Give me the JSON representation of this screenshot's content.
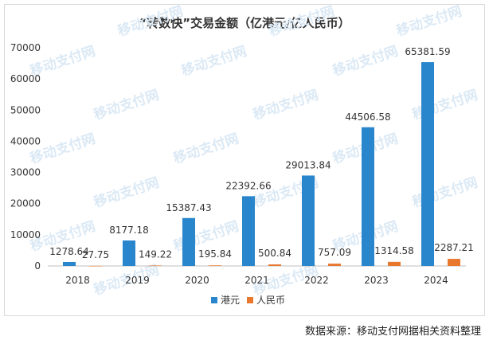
{
  "chart_data": {
    "type": "bar",
    "title": "“转数快”交易金额（亿港元/亿人民币）",
    "categories": [
      "2018",
      "2019",
      "2020",
      "2021",
      "2022",
      "2023",
      "2024"
    ],
    "series": [
      {
        "name": "港元",
        "color": "#2a86cc",
        "values": [
          1278.64,
          8177.18,
          15387.43,
          22392.66,
          29013.84,
          44506.58,
          65381.59
        ],
        "labels": [
          "1278.64",
          "8177.18",
          "15387.43",
          "22392.66",
          "29013.84",
          "44506.58",
          "65381.59"
        ]
      },
      {
        "name": "人民币",
        "color": "#e8782e",
        "values": [
          27.75,
          149.22,
          195.84,
          500.84,
          757.09,
          1314.58,
          2287.21
        ],
        "labels": [
          "27.75",
          "149.22",
          "195.84",
          "500.84",
          "757.09",
          "1314.58",
          "2287.21"
        ]
      }
    ],
    "yticks": [
      "0",
      "10000",
      "20000",
      "30000",
      "40000",
      "50000",
      "60000",
      "70000"
    ],
    "ylim": [
      0,
      70000
    ],
    "grid": false,
    "legend_position": "bottom"
  },
  "watermark": "移动支付网",
  "source_note": "数据来源：移动支付网据相关资料整理"
}
